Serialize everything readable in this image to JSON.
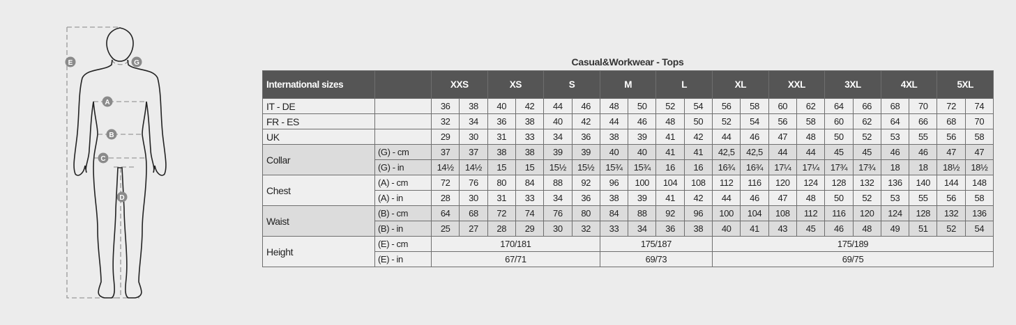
{
  "figure": {
    "markers": [
      "E",
      "G",
      "A",
      "B",
      "C",
      "D"
    ]
  },
  "title": "Casual&Workwear - Tops",
  "header_label": "International sizes",
  "sizes": [
    "XXS",
    "XS",
    "S",
    "M",
    "L",
    "XL",
    "XXL",
    "3XL",
    "4XL",
    "5XL"
  ],
  "rows": [
    {
      "label": "IT - DE",
      "sub": "",
      "values": [
        "36",
        "38",
        "40",
        "42",
        "44",
        "46",
        "48",
        "50",
        "52",
        "54",
        "56",
        "58",
        "60",
        "62",
        "64",
        "66",
        "68",
        "70",
        "72",
        "74"
      ]
    },
    {
      "label": "FR - ES",
      "sub": "",
      "values": [
        "32",
        "34",
        "36",
        "38",
        "40",
        "42",
        "44",
        "46",
        "48",
        "50",
        "52",
        "54",
        "56",
        "58",
        "60",
        "62",
        "64",
        "66",
        "68",
        "70"
      ]
    },
    {
      "label": "UK",
      "sub": "",
      "values": [
        "29",
        "30",
        "31",
        "33",
        "34",
        "36",
        "38",
        "39",
        "41",
        "42",
        "44",
        "46",
        "47",
        "48",
        "50",
        "52",
        "53",
        "55",
        "56",
        "58"
      ]
    },
    {
      "label": "Collar",
      "sub": "(G) - cm",
      "values": [
        "37",
        "37",
        "38",
        "38",
        "39",
        "39",
        "40",
        "40",
        "41",
        "41",
        "42,5",
        "42,5",
        "44",
        "44",
        "45",
        "45",
        "46",
        "46",
        "47",
        "47"
      ]
    },
    {
      "label": "",
      "sub": "(G)  - in",
      "values": [
        "14½",
        "14½",
        "15",
        "15",
        "15½",
        "15½",
        "15¾",
        "15¾",
        "16",
        "16",
        "16¾",
        "16¾",
        "17¼",
        "17¼",
        "17¾",
        "17¾",
        "18",
        "18",
        "18½",
        "18½"
      ]
    },
    {
      "label": "Chest",
      "sub": "(A) - cm",
      "values": [
        "72",
        "76",
        "80",
        "84",
        "88",
        "92",
        "96",
        "100",
        "104",
        "108",
        "112",
        "116",
        "120",
        "124",
        "128",
        "132",
        "136",
        "140",
        "144",
        "148"
      ]
    },
    {
      "label": "",
      "sub": "(A) - in",
      "values": [
        "28",
        "30",
        "31",
        "33",
        "34",
        "36",
        "38",
        "39",
        "41",
        "42",
        "44",
        "46",
        "47",
        "48",
        "50",
        "52",
        "53",
        "55",
        "56",
        "58"
      ]
    },
    {
      "label": "Waist",
      "sub": "(B) - cm",
      "values": [
        "64",
        "68",
        "72",
        "74",
        "76",
        "80",
        "84",
        "88",
        "92",
        "96",
        "100",
        "104",
        "108",
        "112",
        "116",
        "120",
        "124",
        "128",
        "132",
        "136"
      ]
    },
    {
      "label": "",
      "sub": "(B) - in",
      "values": [
        "25",
        "27",
        "28",
        "29",
        "30",
        "32",
        "33",
        "34",
        "36",
        "38",
        "40",
        "41",
        "43",
        "45",
        "46",
        "48",
        "49",
        "51",
        "52",
        "54"
      ]
    },
    {
      "label": "Height",
      "sub": "(E) - cm",
      "groups": [
        {
          "value": "170/181",
          "sizes": [
            "XXS",
            "XS",
            "S"
          ]
        },
        {
          "value": "175/187",
          "sizes": [
            "M",
            "L"
          ]
        },
        {
          "value": "175/189",
          "sizes": [
            "XL",
            "XXL",
            "3XL",
            "4XL",
            "5XL"
          ]
        }
      ]
    },
    {
      "label": "",
      "sub": "(E) - in",
      "groups": [
        {
          "value": "67/71",
          "sizes": [
            "XXS",
            "XS",
            "S"
          ]
        },
        {
          "value": "69/73",
          "sizes": [
            "M",
            "L"
          ]
        },
        {
          "value": "69/75",
          "sizes": [
            "XL",
            "XXL",
            "3XL",
            "4XL",
            "5XL"
          ]
        }
      ]
    }
  ],
  "colors": {
    "header_bg": "#555555",
    "shade": "#dcdcdc",
    "cell": "#efefef",
    "marker": "#8a8a8a"
  }
}
